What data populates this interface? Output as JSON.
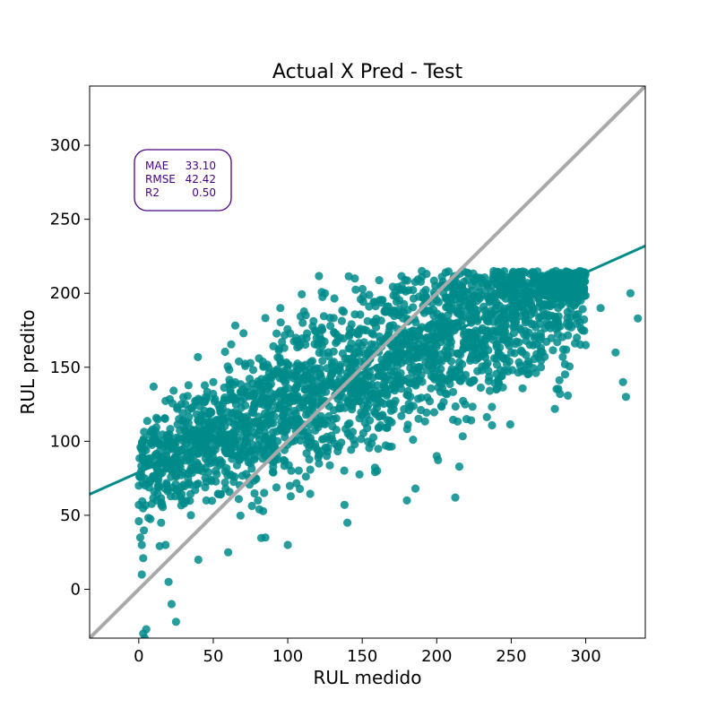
{
  "chart_data": {
    "type": "scatter",
    "title": "Actual X Pred - Test",
    "xlabel": "RUL medido",
    "ylabel": "RUL predito",
    "xlim": [
      -33,
      340
    ],
    "ylim": [
      -33,
      340
    ],
    "xticks": [
      0,
      50,
      100,
      150,
      200,
      250,
      300
    ],
    "yticks": [
      0,
      50,
      100,
      150,
      200,
      250,
      300
    ],
    "grid": false,
    "colors": {
      "points": "#008b8b",
      "fit_line": "#008b8b",
      "identity_line": "#a9a9a9",
      "metrics_box": "#4b0082"
    },
    "fit_line": {
      "intercept": 79,
      "slope": 0.45
    },
    "identity_line": {
      "slope": 1,
      "intercept": 0
    },
    "metrics": [
      {
        "label": "MAE",
        "value": "33.10"
      },
      {
        "label": "RMSE",
        "value": "42.42"
      },
      {
        "label": "R2",
        "value": "0.50"
      }
    ],
    "metrics_box_position": "upper-left",
    "cloud": {
      "center_trend": {
        "intercept": 79,
        "slope": 0.45
      },
      "spread_sd": 28,
      "x_range": [
        0,
        300
      ],
      "point_count": 2400
    },
    "points_sample": [
      [
        0,
        70
      ],
      [
        0,
        57
      ],
      [
        0,
        46
      ],
      [
        1,
        35
      ],
      [
        2,
        30
      ],
      [
        3,
        21
      ],
      [
        2,
        10
      ],
      [
        3,
        -30
      ],
      [
        5,
        -27
      ],
      [
        4,
        -33
      ],
      [
        10,
        75
      ],
      [
        12,
        60
      ],
      [
        15,
        45
      ],
      [
        18,
        30
      ],
      [
        20,
        5
      ],
      [
        22,
        -10
      ],
      [
        25,
        -22
      ],
      [
        27,
        115
      ],
      [
        30,
        100
      ],
      [
        35,
        50
      ],
      [
        40,
        20
      ],
      [
        45,
        130
      ],
      [
        50,
        140
      ],
      [
        55,
        120
      ],
      [
        60,
        100
      ],
      [
        60,
        25
      ],
      [
        70,
        135
      ],
      [
        75,
        85
      ],
      [
        80,
        60
      ],
      [
        85,
        35
      ],
      [
        90,
        145
      ],
      [
        95,
        190
      ],
      [
        100,
        30
      ],
      [
        100,
        120
      ],
      [
        110,
        180
      ],
      [
        120,
        165
      ],
      [
        125,
        200
      ],
      [
        130,
        110
      ],
      [
        140,
        45
      ],
      [
        145,
        210
      ],
      [
        150,
        140
      ],
      [
        160,
        80
      ],
      [
        170,
        155
      ],
      [
        180,
        60
      ],
      [
        190,
        215
      ],
      [
        200,
        90
      ],
      [
        210,
        205
      ],
      [
        220,
        115
      ],
      [
        230,
        175
      ],
      [
        240,
        135
      ],
      [
        250,
        160
      ],
      [
        260,
        195
      ],
      [
        270,
        150
      ],
      [
        280,
        215
      ],
      [
        290,
        200
      ],
      [
        300,
        165
      ],
      [
        310,
        190
      ],
      [
        320,
        160
      ],
      [
        325,
        140
      ],
      [
        327,
        130
      ],
      [
        330,
        200
      ],
      [
        335,
        183
      ]
    ]
  }
}
